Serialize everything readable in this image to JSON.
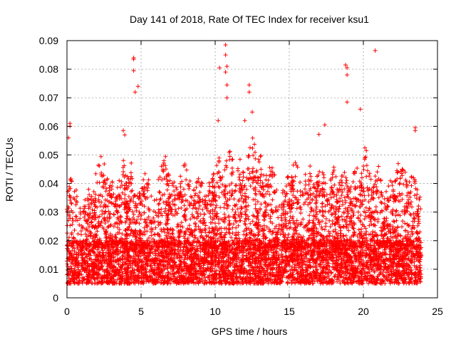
{
  "chart_data": {
    "type": "scatter",
    "title": "Day 141 of 2018, Rate Of TEC Index for receiver ksu1",
    "xlabel": "GPS time / hours",
    "ylabel": "ROTI / TECUs",
    "xlim": [
      0,
      25
    ],
    "ylim": [
      0,
      0.09
    ],
    "x_ticks": [
      "0",
      "5",
      "10",
      "15",
      "20",
      "25"
    ],
    "y_ticks": [
      "0",
      "0.01",
      "0.02",
      "0.03",
      "0.04",
      "0.05",
      "0.06",
      "0.07",
      "0.08",
      "0.09"
    ],
    "grid": true,
    "marker": "plus",
    "series_color": "#ff0000",
    "data_range_x": [
      0,
      23.9
    ],
    "baseline_band": [
      0.005,
      0.02
    ],
    "notable_points": [
      {
        "x": 0.1,
        "y": 0.056
      },
      {
        "x": 0.2,
        "y": 0.061
      },
      {
        "x": 0.2,
        "y": 0.06
      },
      {
        "x": 4.5,
        "y": 0.084
      },
      {
        "x": 4.5,
        "y": 0.0835
      },
      {
        "x": 4.5,
        "y": 0.0795
      },
      {
        "x": 4.6,
        "y": 0.072
      },
      {
        "x": 4.8,
        "y": 0.074
      },
      {
        "x": 10.3,
        "y": 0.0805
      },
      {
        "x": 10.7,
        "y": 0.0885
      },
      {
        "x": 10.7,
        "y": 0.085
      },
      {
        "x": 10.8,
        "y": 0.081
      },
      {
        "x": 10.7,
        "y": 0.079
      },
      {
        "x": 10.8,
        "y": 0.0745
      },
      {
        "x": 10.8,
        "y": 0.07
      },
      {
        "x": 10.2,
        "y": 0.062
      },
      {
        "x": 12.3,
        "y": 0.0745
      },
      {
        "x": 12.3,
        "y": 0.072
      },
      {
        "x": 12.5,
        "y": 0.065
      },
      {
        "x": 18.8,
        "y": 0.0815
      },
      {
        "x": 18.9,
        "y": 0.0805
      },
      {
        "x": 18.9,
        "y": 0.078
      },
      {
        "x": 18.9,
        "y": 0.0685
      },
      {
        "x": 19.8,
        "y": 0.066
      },
      {
        "x": 20.8,
        "y": 0.0865
      },
      {
        "x": 20.1,
        "y": 0.0525
      },
      {
        "x": 20.2,
        "y": 0.0515
      },
      {
        "x": 17.4,
        "y": 0.0605
      },
      {
        "x": 17.0,
        "y": 0.0572
      },
      {
        "x": 23.5,
        "y": 0.0595
      },
      {
        "x": 23.5,
        "y": 0.0585
      },
      {
        "x": 3.8,
        "y": 0.0585
      },
      {
        "x": 3.9,
        "y": 0.057
      },
      {
        "x": 12.0,
        "y": 0.062
      }
    ],
    "peaks": [
      {
        "x": 0.2,
        "y": 0.044
      },
      {
        "x": 1.5,
        "y": 0.039
      },
      {
        "x": 2.3,
        "y": 0.052
      },
      {
        "x": 3.0,
        "y": 0.042
      },
      {
        "x": 3.8,
        "y": 0.05
      },
      {
        "x": 4.3,
        "y": 0.048
      },
      {
        "x": 5.3,
        "y": 0.047
      },
      {
        "x": 6.6,
        "y": 0.052
      },
      {
        "x": 7.2,
        "y": 0.042
      },
      {
        "x": 8.0,
        "y": 0.051
      },
      {
        "x": 8.9,
        "y": 0.045
      },
      {
        "x": 9.7,
        "y": 0.043
      },
      {
        "x": 10.2,
        "y": 0.051
      },
      {
        "x": 11.0,
        "y": 0.055
      },
      {
        "x": 11.7,
        "y": 0.049
      },
      {
        "x": 12.5,
        "y": 0.058
      },
      {
        "x": 13.0,
        "y": 0.052
      },
      {
        "x": 13.7,
        "y": 0.05
      },
      {
        "x": 14.9,
        "y": 0.044
      },
      {
        "x": 15.4,
        "y": 0.05
      },
      {
        "x": 16.3,
        "y": 0.049
      },
      {
        "x": 17.1,
        "y": 0.048
      },
      {
        "x": 18.0,
        "y": 0.046
      },
      {
        "x": 18.6,
        "y": 0.047
      },
      {
        "x": 19.5,
        "y": 0.048
      },
      {
        "x": 20.2,
        "y": 0.052
      },
      {
        "x": 21.0,
        "y": 0.047
      },
      {
        "x": 21.8,
        "y": 0.043
      },
      {
        "x": 22.5,
        "y": 0.052
      },
      {
        "x": 23.3,
        "y": 0.045
      }
    ]
  }
}
